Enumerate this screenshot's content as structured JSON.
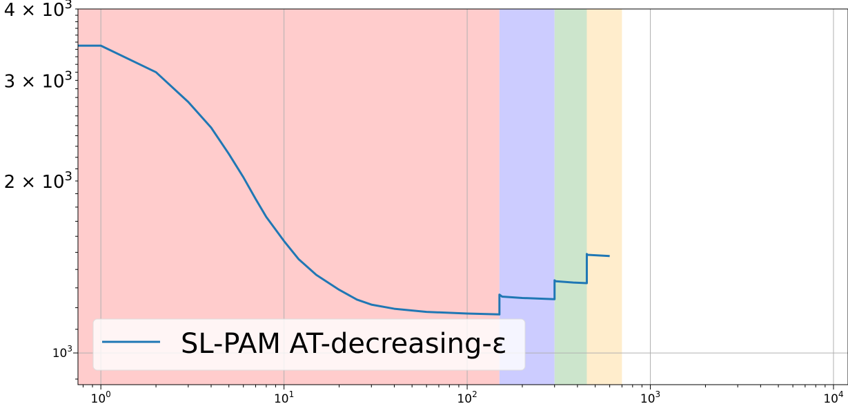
{
  "chart_data": {
    "type": "line",
    "title": "",
    "xlabel": "",
    "ylabel": "",
    "x_scale": "log",
    "y_scale": "log",
    "xlim": [
      0.75,
      12000
    ],
    "ylim": [
      880,
      4000
    ],
    "grid": true,
    "legend_placement": "lower-left",
    "x_tick_labels": [
      {
        "value": 1,
        "base": "10",
        "exp": "0"
      },
      {
        "value": 10,
        "base": "10",
        "exp": "1"
      },
      {
        "value": 100,
        "base": "10",
        "exp": "2"
      },
      {
        "value": 1000,
        "base": "10",
        "exp": "3"
      },
      {
        "value": 10000,
        "base": "10",
        "exp": "4"
      }
    ],
    "y_tick_labels": [
      {
        "value": 1000,
        "mant": "",
        "base": "10",
        "exp": "3",
        "size": "small"
      },
      {
        "value": 2000,
        "mant": "2 × ",
        "base": "10",
        "exp": "3",
        "size": "big"
      },
      {
        "value": 3000,
        "mant": "3 × ",
        "base": "10",
        "exp": "3",
        "size": "big"
      },
      {
        "value": 4000,
        "mant": "4 × ",
        "base": "10",
        "exp": "3",
        "size": "big"
      }
    ],
    "shaded_regions": [
      {
        "x_start": 0.75,
        "x_end": 150,
        "color": "#ffcccc"
      },
      {
        "x_start": 150,
        "x_end": 300,
        "color": "#ccccff"
      },
      {
        "x_start": 300,
        "x_end": 450,
        "color": "#cce5cc"
      },
      {
        "x_start": 450,
        "x_end": 700,
        "color": "#ffedcc"
      }
    ],
    "series": [
      {
        "name": "SL-PAM AT-decreasing-ε",
        "color": "#1f77b4",
        "points": [
          [
            0.75,
            3450
          ],
          [
            1,
            3450
          ],
          [
            2,
            3100
          ],
          [
            3,
            2750
          ],
          [
            4,
            2480
          ],
          [
            5,
            2230
          ],
          [
            6,
            2030
          ],
          [
            7,
            1860
          ],
          [
            8,
            1730
          ],
          [
            10,
            1570
          ],
          [
            12,
            1460
          ],
          [
            15,
            1370
          ],
          [
            20,
            1290
          ],
          [
            25,
            1240
          ],
          [
            30,
            1215
          ],
          [
            40,
            1195
          ],
          [
            60,
            1180
          ],
          [
            100,
            1172
          ],
          [
            150,
            1168
          ],
          [
            150,
            1265
          ],
          [
            155,
            1255
          ],
          [
            200,
            1248
          ],
          [
            300,
            1242
          ],
          [
            300,
            1340
          ],
          [
            305,
            1335
          ],
          [
            380,
            1328
          ],
          [
            450,
            1325
          ],
          [
            450,
            1490
          ],
          [
            455,
            1485
          ],
          [
            600,
            1478
          ]
        ]
      }
    ]
  }
}
